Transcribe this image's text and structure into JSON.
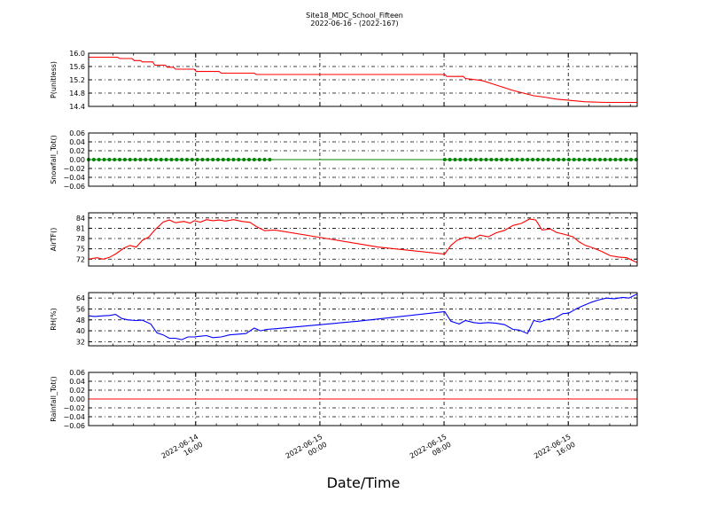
{
  "header": {
    "title": "Site18_MDC_School_Fifteen",
    "subtitle": "2022-06-16 - (2022-167)"
  },
  "chart_data": [
    {
      "type": "line",
      "ylabel": "P(unitless)",
      "ylim": [
        14.4,
        16.0
      ],
      "yticks": [
        "16.0",
        "15.6",
        "15.2",
        "14.8",
        "14.4"
      ],
      "yticks_num": [
        16.0,
        15.6,
        15.2,
        14.8,
        14.4
      ],
      "color": "#ff0000",
      "marker": "none",
      "xlim_h": [
        0,
        26.5
      ],
      "x": [
        0,
        1.4,
        1.5,
        2.1,
        2.2,
        2.5,
        2.6,
        3.1,
        3.2,
        3.7,
        3.8,
        4.1,
        4.2,
        5.1,
        5.2,
        6.3,
        6.4,
        8.0,
        8.1,
        17.2,
        17.3,
        18.1,
        18.2,
        19.0,
        19.5,
        20.5,
        21.5,
        22.0,
        22.6,
        23.3,
        24.0,
        25.0,
        26.5
      ],
      "y": [
        15.88,
        15.88,
        15.84,
        15.84,
        15.78,
        15.78,
        15.74,
        15.74,
        15.64,
        15.64,
        15.58,
        15.58,
        15.52,
        15.52,
        15.45,
        15.45,
        15.4,
        15.4,
        15.36,
        15.36,
        15.3,
        15.3,
        15.24,
        15.18,
        15.08,
        14.88,
        14.72,
        14.68,
        14.62,
        14.58,
        14.54,
        14.52,
        14.52
      ]
    },
    {
      "type": "scatter",
      "ylabel": "Snowfall_Tot()",
      "ylim": [
        -0.06,
        0.06
      ],
      "yticks": [
        "0.06",
        "0.04",
        "0.02",
        "0.00",
        "−0.02",
        "−0.04",
        "−0.06"
      ],
      "yticks_num": [
        0.06,
        0.04,
        0.02,
        0.0,
        -0.02,
        -0.04,
        -0.06
      ],
      "color": "#008000",
      "marker": "dot",
      "xlim_h": [
        0,
        26.5
      ],
      "x": [
        0,
        0.25,
        0.5,
        0.75,
        1.0,
        1.25,
        1.5,
        1.75,
        2.0,
        2.25,
        2.5,
        2.75,
        3.0,
        3.25,
        3.5,
        3.75,
        4.0,
        4.25,
        4.5,
        4.75,
        5.0,
        5.25,
        5.5,
        5.75,
        6.0,
        6.25,
        6.5,
        6.75,
        7.0,
        7.25,
        7.5,
        7.75,
        8.0,
        8.25,
        8.5,
        8.75,
        17.2,
        17.45,
        17.7,
        17.95,
        18.2,
        18.45,
        18.7,
        18.95,
        19.2,
        19.45,
        19.7,
        19.95,
        20.2,
        20.45,
        20.7,
        20.95,
        21.2,
        21.45,
        21.7,
        21.95,
        22.2,
        22.45,
        22.7,
        22.95,
        23.2,
        23.45,
        23.7,
        23.95,
        24.2,
        24.45,
        24.7,
        24.95,
        25.2,
        25.45,
        25.7,
        25.95,
        26.2,
        26.45
      ],
      "y": [
        0,
        0,
        0,
        0,
        0,
        0,
        0,
        0,
        0,
        0,
        0,
        0,
        0,
        0,
        0,
        0,
        0,
        0,
        0,
        0,
        0,
        0,
        0,
        0,
        0,
        0,
        0,
        0,
        0,
        0,
        0,
        0,
        0,
        0,
        0,
        0,
        0,
        0,
        0,
        0,
        0,
        0,
        0,
        0,
        0,
        0,
        0,
        0,
        0,
        0,
        0,
        0,
        0,
        0,
        0,
        0,
        0,
        0,
        0,
        0,
        0,
        0,
        0,
        0,
        0,
        0,
        0,
        0,
        0,
        0,
        0,
        0,
        0,
        0
      ],
      "line_x": [
        0,
        26.5
      ],
      "line_y": [
        0,
        0
      ]
    },
    {
      "type": "line",
      "ylabel": "AirTF()",
      "ylim": [
        70,
        85.5
      ],
      "yticks": [
        "84",
        "81",
        "78",
        "75",
        "72"
      ],
      "yticks_num": [
        84,
        81,
        78,
        75,
        72
      ],
      "color": "#ff0000",
      "marker": "none",
      "xlim_h": [
        0,
        26.5
      ],
      "x": [
        0,
        0.4,
        0.7,
        1.0,
        1.3,
        1.7,
        2.0,
        2.3,
        2.6,
        2.9,
        3.2,
        3.6,
        3.9,
        4.2,
        4.6,
        4.9,
        5.1,
        5.4,
        5.7,
        6.0,
        6.3,
        6.6,
        7.0,
        7.4,
        7.8,
        8.1,
        8.5,
        9.0,
        11.5,
        14.0,
        17.2,
        17.5,
        17.8,
        18.2,
        18.6,
        18.9,
        19.3,
        19.7,
        20.1,
        20.5,
        20.9,
        21.3,
        21.6,
        21.9,
        22.3,
        22.6,
        23.0,
        23.4,
        23.7,
        24.0,
        24.4,
        24.8,
        25.2,
        25.6,
        26.0,
        26.5
      ],
      "y": [
        72.0,
        72.4,
        72.0,
        72.5,
        73.5,
        75.2,
        76.0,
        75.5,
        77.5,
        78.4,
        80.5,
        82.8,
        83.4,
        82.6,
        83.0,
        82.5,
        83.2,
        82.8,
        83.5,
        83.2,
        83.4,
        83.1,
        83.5,
        83.0,
        82.7,
        81.5,
        80.3,
        80.5,
        78.0,
        75.5,
        73.5,
        76.0,
        77.5,
        78.4,
        78.0,
        79.0,
        78.5,
        79.7,
        80.4,
        81.8,
        82.4,
        83.7,
        83.4,
        80.5,
        80.8,
        79.8,
        79.2,
        78.5,
        77.0,
        76.0,
        75.2,
        74.2,
        73.0,
        72.6,
        72.4,
        71.0
      ]
    },
    {
      "type": "line",
      "ylabel": "RH(%)",
      "ylim": [
        29,
        68
      ],
      "yticks": [
        "64",
        "56",
        "48",
        "40",
        "32"
      ],
      "yticks_num": [
        64,
        56,
        48,
        40,
        32
      ],
      "color": "#0000ff",
      "marker": "none",
      "xlim_h": [
        0,
        26.5
      ],
      "x": [
        0,
        0.3,
        0.7,
        1.0,
        1.3,
        1.6,
        1.9,
        2.3,
        2.6,
        3.0,
        3.3,
        3.6,
        3.9,
        4.2,
        4.5,
        4.8,
        5.1,
        5.4,
        5.7,
        6.0,
        6.4,
        6.8,
        7.2,
        7.6,
        8.0,
        8.3,
        8.6,
        9.0,
        13.0,
        17.2,
        17.5,
        17.9,
        18.2,
        18.6,
        18.9,
        19.3,
        19.7,
        20.1,
        20.5,
        20.8,
        21.2,
        21.5,
        21.8,
        22.2,
        22.5,
        22.9,
        23.2,
        23.6,
        23.9,
        24.3,
        24.6,
        25.0,
        25.4,
        25.8,
        26.1,
        26.5
      ],
      "y": [
        51,
        50.5,
        51,
        51.2,
        52,
        49,
        48,
        47.5,
        47.8,
        45,
        38.5,
        37,
        34.5,
        34.5,
        33.5,
        35.5,
        35.5,
        36,
        36.5,
        35,
        35.5,
        37,
        37.5,
        38,
        42,
        40,
        41,
        41.5,
        47,
        54,
        47,
        45,
        47.5,
        46,
        45.5,
        46,
        45.5,
        44.5,
        41,
        40.5,
        38,
        47.5,
        46.5,
        48.5,
        49,
        52.5,
        53,
        56.5,
        58.5,
        61,
        62.5,
        64,
        63.5,
        64.5,
        64,
        67
      ]
    },
    {
      "type": "line",
      "ylabel": "Rainfall_Tot()",
      "ylim": [
        -0.06,
        0.06
      ],
      "yticks": [
        "0.06",
        "0.04",
        "0.02",
        "0.00",
        "−0.02",
        "−0.04",
        "−0.06"
      ],
      "yticks_num": [
        0.06,
        0.04,
        0.02,
        0.0,
        -0.02,
        -0.04,
        -0.06
      ],
      "color": "#ff0000",
      "marker": "none",
      "xlim_h": [
        0,
        26.5
      ],
      "x": [
        0,
        26.5
      ],
      "y": [
        0,
        0
      ]
    }
  ],
  "xaxis": {
    "label": "Date/Time",
    "ticks": [
      {
        "h": 5.17,
        "line1": "2022-06-14",
        "line2": "16:00"
      },
      {
        "h": 11.17,
        "line1": "2022-06-15",
        "line2": "00:00"
      },
      {
        "h": 17.17,
        "line1": "2022-06-15",
        "line2": "08:00"
      },
      {
        "h": 23.17,
        "line1": "2022-06-15",
        "line2": "16:00"
      }
    ],
    "minor_h": [
      1.17,
      2.17,
      3.17,
      4.17,
      6.17,
      7.17,
      8.17,
      9.17,
      10.17,
      12.17,
      13.17,
      14.17,
      15.17,
      16.17,
      18.17,
      19.17,
      20.17,
      21.17,
      22.17,
      24.17,
      25.17,
      26.17
    ]
  }
}
